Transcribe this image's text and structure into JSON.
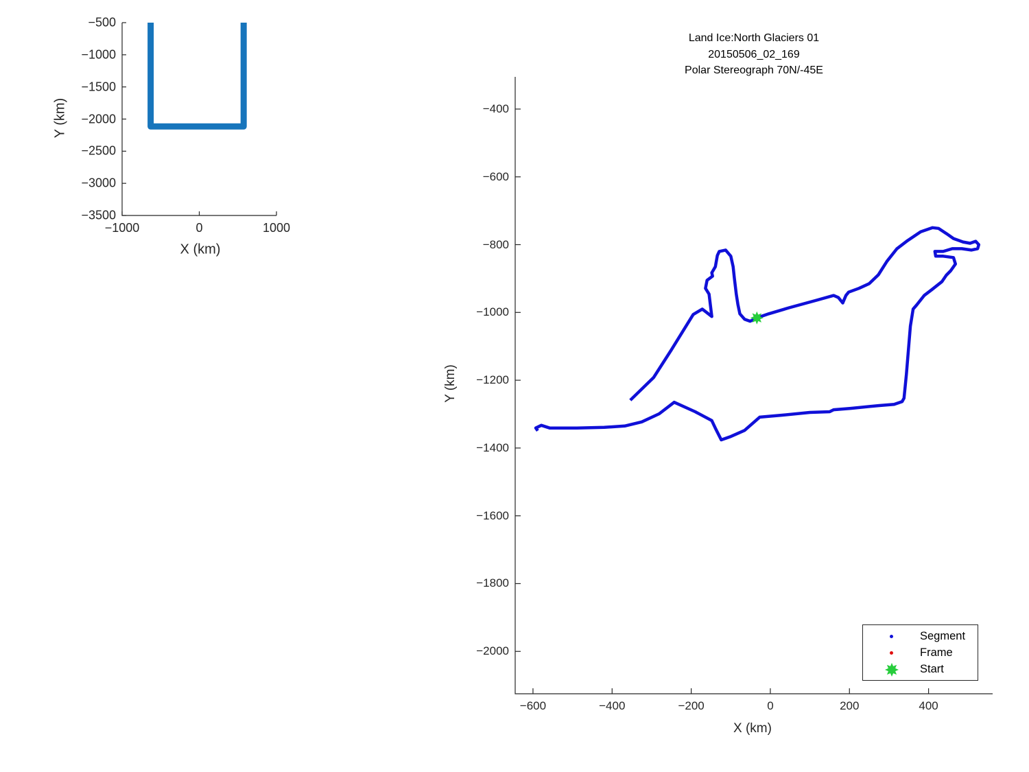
{
  "chart_data": [
    {
      "name": "flight-overview",
      "type": "line",
      "title": "",
      "xlabel": "X (km)",
      "ylabel": "Y (km)",
      "xlim": [
        -1000,
        1000
      ],
      "ylim": [
        -3500,
        -500
      ],
      "xticks": [
        -1000,
        0,
        1000
      ],
      "yticks": [
        -500,
        -1000,
        -1500,
        -2000,
        -2500,
        -3000,
        -3500
      ],
      "grid": false,
      "legend": null,
      "series": [
        {
          "name": "overview-track",
          "type": "line",
          "color": "#1775bc",
          "line_width": 9,
          "x": [
            -630,
            -630,
            575,
            575
          ],
          "y": [
            -500,
            -2115,
            -2115,
            -500
          ]
        }
      ]
    },
    {
      "name": "segment-trajectory",
      "type": "line",
      "title": "Land Ice:North Glaciers 01\n20150506_02_169\nPolar Stereograph 70N/-45E",
      "title_lines": [
        "Land Ice:North Glaciers 01",
        "20150506_02_169",
        "Polar Stereograph 70N/-45E"
      ],
      "xlabel": "X (km)",
      "ylabel": "Y (km)",
      "xlim": [
        -645,
        562
      ],
      "ylim": [
        -2125,
        -305
      ],
      "xticks": [
        -600,
        -400,
        -200,
        0,
        200,
        400
      ],
      "yticks": [
        -400,
        -600,
        -800,
        -1000,
        -1200,
        -1400,
        -1600,
        -1800,
        -2000
      ],
      "grid": false,
      "legend": {
        "position": "southeast",
        "entries": [
          {
            "label": "Segment",
            "marker": "dot",
            "color": "#1010d8"
          },
          {
            "label": "Frame",
            "marker": "dot",
            "color": "#e01010"
          },
          {
            "label": "Start",
            "marker": "star",
            "color": "#27cd3c"
          }
        ]
      },
      "series": [
        {
          "name": "segment-track",
          "type": "line",
          "color": "#1010d8",
          "line_width": 4.5,
          "x": [
            -354,
            -295,
            -250,
            -195,
            -172,
            -148,
            -155,
            -164,
            -160,
            -146,
            -148,
            -139,
            -134,
            -129,
            -113,
            -100,
            -94,
            -91,
            -86,
            -82,
            -77,
            -65,
            -51,
            -34,
            -4,
            48,
            117,
            160,
            172,
            183,
            191,
            198,
            224,
            250,
            273,
            295,
            320,
            347,
            380,
            410,
            425,
            446,
            463,
            487,
            505,
            519,
            527,
            524,
            508,
            484,
            460,
            437,
            416,
            418,
            437,
            463,
            468,
            456,
            445,
            434,
            408,
            389,
            370,
            361,
            354,
            349,
            344,
            338,
            333,
            313,
            273,
            203,
            160,
            150,
            100,
            30,
            -27,
            -65,
            -100,
            -124,
            -138,
            -148,
            -190,
            -243,
            -281,
            -325,
            -368,
            -420,
            -489,
            -558,
            -579,
            -593,
            -588
          ],
          "y": [
            -1259,
            -1192,
            -1110,
            -1006,
            -990,
            -1012,
            -946,
            -929,
            -905,
            -893,
            -883,
            -865,
            -832,
            -820,
            -816,
            -834,
            -865,
            -899,
            -946,
            -976,
            -1004,
            -1020,
            -1026,
            -1016,
            -1004,
            -986,
            -964,
            -950,
            -956,
            -972,
            -950,
            -940,
            -929,
            -915,
            -889,
            -849,
            -812,
            -788,
            -762,
            -750,
            -752,
            -768,
            -782,
            -792,
            -796,
            -790,
            -800,
            -812,
            -816,
            -812,
            -812,
            -820,
            -820,
            -834,
            -834,
            -838,
            -857,
            -877,
            -890,
            -909,
            -933,
            -950,
            -978,
            -990,
            -1040,
            -1111,
            -1182,
            -1253,
            -1263,
            -1271,
            -1275,
            -1283,
            -1287,
            -1293,
            -1295,
            -1303,
            -1309,
            -1348,
            -1366,
            -1376,
            -1344,
            -1319,
            -1293,
            -1265,
            -1299,
            -1323,
            -1335,
            -1339,
            -1341,
            -1341,
            -1333,
            -1341,
            -1349
          ]
        },
        {
          "name": "start-point",
          "type": "marker",
          "marker": "star",
          "color": "#27cd3c",
          "size": 19,
          "x": [
            -34
          ],
          "y": [
            -1016
          ]
        }
      ]
    }
  ]
}
